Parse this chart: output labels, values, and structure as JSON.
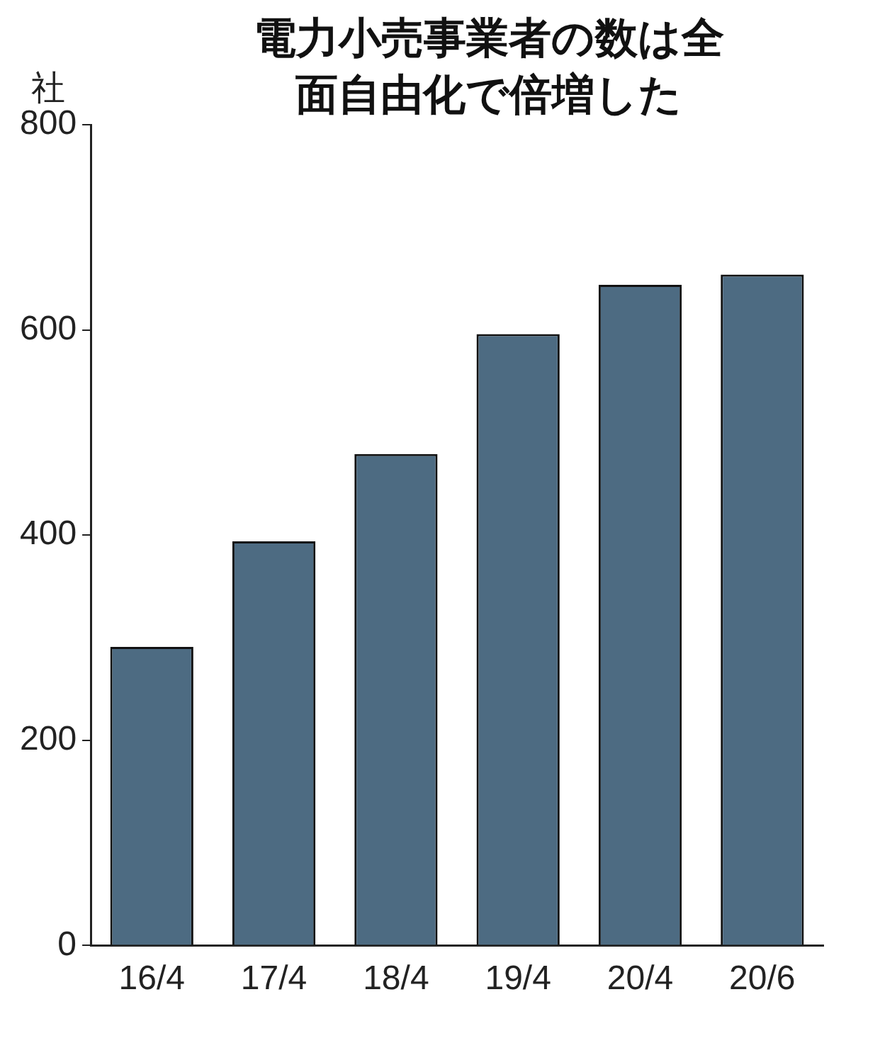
{
  "chart_data": {
    "type": "bar",
    "title": "電力小売事業者の数は全面自由化で倍増した",
    "ylabel": "社",
    "categories": [
      "16/4",
      "17/4",
      "18/4",
      "19/4",
      "20/4",
      "20/6"
    ],
    "values": [
      291,
      394,
      479,
      596,
      644,
      654
    ],
    "color": "#4d6b82",
    "ylim": [
      0,
      800
    ],
    "yticks": [
      0,
      200,
      400,
      600,
      800
    ],
    "grid": false,
    "legend": false
  }
}
